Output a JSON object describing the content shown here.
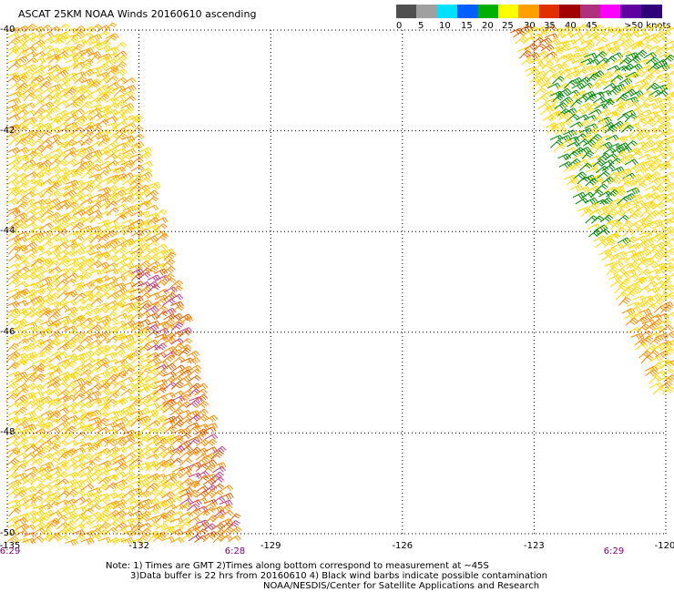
{
  "title": "ASCAT 25KM NOAA Winds 20160610 ascending",
  "scale": {
    "swatches": [
      {
        "color": "#505050"
      },
      {
        "color": "#a0a0a0"
      },
      {
        "color": "#00e0ff"
      },
      {
        "color": "#0060ff"
      },
      {
        "color": "#00b000"
      },
      {
        "color": "#ffff00"
      },
      {
        "color": "#ffa000"
      },
      {
        "color": "#e03000"
      },
      {
        "color": "#a00000"
      },
      {
        "color": "#b03080"
      },
      {
        "color": "#ff00ff"
      },
      {
        "color": "#6000a0"
      },
      {
        "color": "#30007a"
      }
    ],
    "labels": [
      "0",
      "5",
      "10",
      "15",
      "20",
      "25",
      "30",
      "35",
      "40",
      "45",
      ">50 knots"
    ]
  },
  "latitudes": [
    "-40",
    "-42",
    "-44",
    "-46",
    "-48",
    "-50"
  ],
  "longitudes": [
    "-135",
    "-132",
    "-129",
    "-126",
    "-123",
    "-120"
  ],
  "times": [
    "6:29",
    "6:28",
    "6:29"
  ],
  "notes": {
    "line1": "Note: 1) Times are GMT 2)Times along bottom correspond to measurement at ~45S",
    "line2": "3)Data buffer is 22 hrs from 20160610 4) Black wind barbs indicate possible contamination",
    "line3": "NOAA/NESDIS/Center for Satellite Applications and Research"
  },
  "map": {
    "lat_range": [
      -50,
      -40
    ],
    "lon_range": [
      -135,
      -120
    ],
    "grid": "dotted",
    "swaths": [
      {
        "name": "left-swath",
        "colors": [
          "#ffd700",
          "#ffa500",
          "#ff8c00",
          "#e06000"
        ]
      },
      {
        "name": "right-swath",
        "colors": [
          "#ffd700",
          "#008800",
          "#ff8c00"
        ]
      }
    ]
  }
}
